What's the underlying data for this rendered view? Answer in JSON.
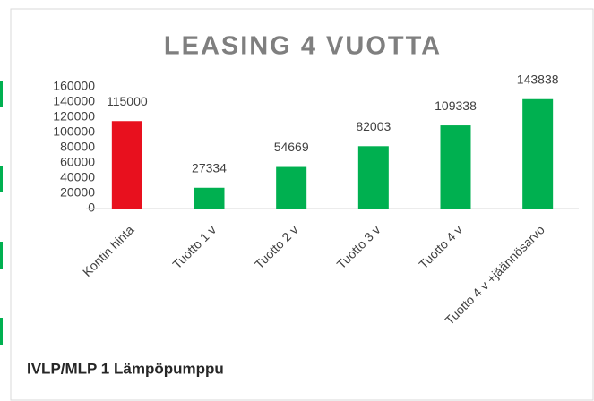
{
  "chart_data": {
    "type": "bar",
    "title": "LEASING 4 VUOTTA",
    "footer": "IVLP/MLP 1 Lämpöpumppu",
    "categories": [
      "Kontin hinta",
      "Tuotto 1 v",
      "Tuotto 2 v",
      "Tuotto 3 v",
      "Tuotto 4 v",
      "Tuotto 4 v +jäännösarvo"
    ],
    "values": [
      115000,
      27334,
      54669,
      82003,
      109338,
      143838
    ],
    "colors": [
      "#e8101e",
      "#00b050",
      "#00b050",
      "#00b050",
      "#00b050",
      "#00b050"
    ],
    "ylim": [
      0,
      160000
    ],
    "yticks": [
      0,
      20000,
      40000,
      60000,
      80000,
      100000,
      120000,
      140000,
      160000
    ],
    "grid": false
  }
}
